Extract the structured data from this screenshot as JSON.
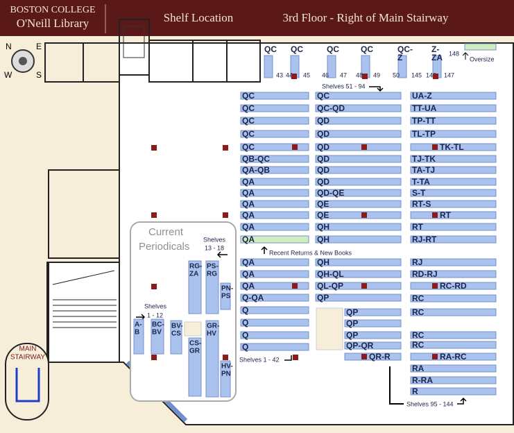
{
  "header": {
    "institution": "BOSTON COLLEGE",
    "library": "O'Neill Library",
    "section": "Shelf Location",
    "location": "3rd Floor - Right of Main Stairway"
  },
  "compass": {
    "north": "N",
    "east": "E",
    "west": "W",
    "south": "S"
  },
  "top_shelves": [
    {
      "label": [
        "QC"
      ],
      "numbers": [
        43
      ]
    },
    {
      "label": [
        "QC"
      ],
      "numbers": [
        44,
        45
      ]
    },
    {
      "label": [
        "QC"
      ],
      "numbers": [
        46,
        47
      ]
    },
    {
      "label": [
        "QC"
      ],
      "numbers": [
        48,
        49
      ]
    },
    {
      "label": [
        "QC-",
        "Z"
      ],
      "numbers": [
        50
      ]
    },
    {
      "label": [
        "Z-",
        "ZA"
      ],
      "numbers": [
        145,
        146,
        147
      ]
    }
  ],
  "oversize": {
    "number": 148,
    "label": "Oversize"
  },
  "notes": {
    "shelves_51_94": "Shelves 51 - 94",
    "recent_returns": "Recent Returns & New Books",
    "shelves_1_42": "Shelves 1 - 42",
    "shelves_95_144": "Shelves 95 - 144"
  },
  "columns": [
    [
      "QC",
      "QC",
      "QC",
      "QC",
      "QC",
      "QB-QC",
      "QA-QB",
      "QA",
      "QA",
      "QA",
      "QA",
      "QA",
      "QA",
      "QA",
      "QA",
      "QA",
      "Q-QA",
      "Q",
      "Q",
      "Q",
      "Q"
    ],
    [
      "QC",
      "QC-QD",
      "QD",
      "QD",
      "QD",
      "QD",
      "QD",
      "QD",
      "QD-QE",
      "QE",
      "QE",
      "QH",
      "QH",
      "QH",
      "QH-QL",
      "QL-QP",
      "QP",
      "QP",
      "QP",
      "QP",
      "QP-QR",
      "QR-R"
    ],
    [
      "UA-Z",
      "TT-UA",
      "TP-TT",
      "TL-TP",
      "TK-TL",
      "TJ-TK",
      "TA-TJ",
      "T-TA",
      "S-T",
      "RT-S",
      "RT",
      "RT",
      "RJ-RT",
      "RJ",
      "RD-RJ",
      "RC-RD",
      "RC",
      "RC",
      "RC",
      "RC",
      "RA-RC",
      "RA",
      "R-RA",
      "R"
    ]
  ],
  "periodicals": {
    "title": [
      "Current",
      "Periodicals"
    ],
    "shelves_13_18": [
      "Shelves",
      "13 - 18"
    ],
    "shelves_1_12": [
      "Shelves",
      "1 - 12"
    ],
    "shelves": [
      {
        "label": [
          "A-",
          "B"
        ]
      },
      {
        "label": [
          "BC-",
          "BV"
        ]
      },
      {
        "label": [
          "BV-",
          "CS"
        ]
      },
      {
        "label": [
          "CS-",
          "GR"
        ]
      },
      {
        "label": [
          "RG-",
          "ZA"
        ]
      },
      {
        "label": [
          "PS-",
          "RG"
        ]
      },
      {
        "label": [
          "PN-",
          "PS"
        ]
      },
      {
        "label": [
          "GR-",
          "HV"
        ]
      },
      {
        "label": [
          "HV-",
          "PN"
        ]
      }
    ]
  },
  "stairway": [
    "MAIN",
    "STAIRWAY"
  ]
}
